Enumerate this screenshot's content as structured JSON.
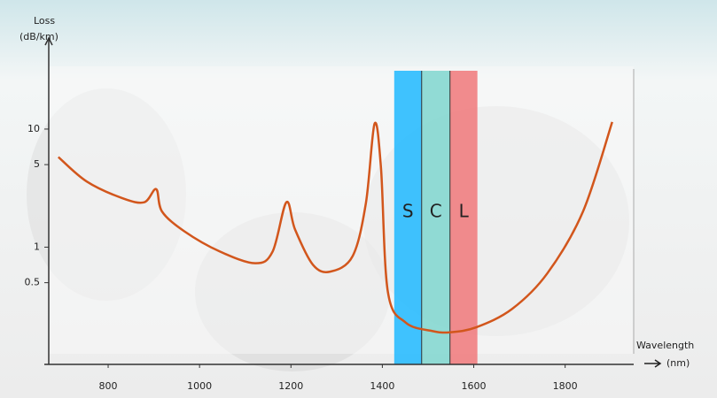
{
  "chart_data": {
    "type": "line",
    "ylabel": [
      "Loss",
      "(dB/km)"
    ],
    "xlabel": [
      "Wavelength",
      "(nm)"
    ],
    "xlim": [
      670,
      1950
    ],
    "xticks": [
      800,
      1000,
      1200,
      1400,
      1600,
      1800
    ],
    "ylim": [
      0.125,
      48
    ],
    "yticks": [
      0.5,
      1,
      5,
      10
    ],
    "log_y": true,
    "bands": [
      {
        "label": "S",
        "start": 1426,
        "end": 1486,
        "color": "#1fb8ff"
      },
      {
        "label": "C",
        "start": 1486,
        "end": 1548,
        "color": "#7fd6cf"
      },
      {
        "label": "L",
        "start": 1548,
        "end": 1608,
        "color": "#f0787a"
      }
    ],
    "series": [
      {
        "color": "#d2561c",
        "x": [
          691,
          753,
          831,
          879,
          905,
          918,
          967,
          1044,
          1122,
          1160,
          1190,
          1209,
          1248,
          1286,
          1335,
          1364,
          1383,
          1397,
          1412,
          1451,
          1509,
          1548,
          1606,
          1684,
          1761,
          1839,
          1903
        ],
        "values": [
          5.8,
          3.6,
          2.6,
          2.4,
          3.1,
          2.0,
          1.36,
          0.92,
          0.73,
          0.92,
          2.4,
          1.41,
          0.71,
          0.62,
          0.84,
          2.36,
          11.1,
          4.7,
          0.42,
          0.23,
          0.195,
          0.19,
          0.21,
          0.3,
          0.6,
          2.0,
          11.5
        ]
      }
    ]
  }
}
